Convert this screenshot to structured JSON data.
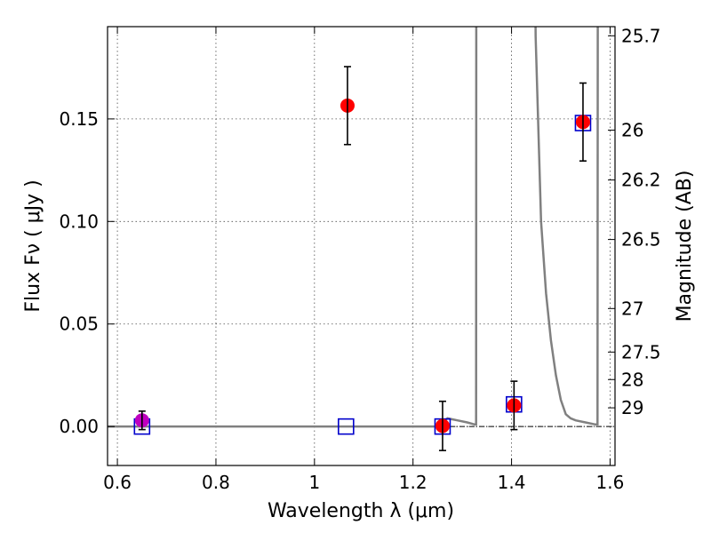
{
  "chart_data": {
    "type": "scatter",
    "title": "",
    "xlabel": "Wavelength  λ (μm)",
    "ylabel": "Flux  Fν  ( μJy )",
    "ylabel_right": "Magnitude (AB)",
    "xlim": [
      0.58,
      1.61
    ],
    "ylim": [
      -0.019,
      0.195
    ],
    "grid": true,
    "x_ticks": [
      {
        "value": 0.6,
        "label": "0.6"
      },
      {
        "value": 0.8,
        "label": "0.8"
      },
      {
        "value": 1.0,
        "label": "1"
      },
      {
        "value": 1.2,
        "label": "1.2"
      },
      {
        "value": 1.4,
        "label": "1.4"
      },
      {
        "value": 1.6,
        "label": "1.6"
      }
    ],
    "y_ticks": [
      {
        "value": 0.0,
        "label": "0.00"
      },
      {
        "value": 0.05,
        "label": "0.05"
      },
      {
        "value": 0.1,
        "label": "0.10"
      },
      {
        "value": 0.15,
        "label": "0.15"
      }
    ],
    "mag_ticks": [
      {
        "mag": 25.7,
        "label": "25.7"
      },
      {
        "mag": 26.0,
        "label": "26"
      },
      {
        "mag": 26.2,
        "label": "26.2"
      },
      {
        "mag": 26.5,
        "label": "26.5"
      },
      {
        "mag": 27.0,
        "label": "27"
      },
      {
        "mag": 27.5,
        "label": "27.5"
      },
      {
        "mag": 28.0,
        "label": "28"
      },
      {
        "mag": 29.0,
        "label": "29"
      }
    ],
    "observed": {
      "color": "#ff0000",
      "points": [
        {
          "x": 1.067,
          "y": 0.1565,
          "err": 0.019
        },
        {
          "x": 1.26,
          "y": 0.0003,
          "err": 0.012
        },
        {
          "x": 1.405,
          "y": 0.0103,
          "err": 0.0118
        },
        {
          "x": 1.545,
          "y": 0.1485,
          "err": 0.019
        }
      ]
    },
    "observed_optical": {
      "color": "#bf00bf",
      "points": [
        {
          "x": 0.65,
          "y": 0.003,
          "err": 0.0045
        }
      ]
    },
    "model": {
      "color": "#0000cc",
      "points": [
        {
          "x": 0.65,
          "y": 0.0
        },
        {
          "x": 1.064,
          "y": 0.0
        },
        {
          "x": 1.26,
          "y": 0.0
        },
        {
          "x": 1.405,
          "y": 0.0108
        },
        {
          "x": 1.545,
          "y": 0.148
        }
      ]
    },
    "spectrum": {
      "color": "#808080",
      "x": [
        0.58,
        1.25,
        1.27,
        1.29,
        1.31,
        1.325,
        1.328,
        1.3285,
        1.4485,
        1.449,
        1.455,
        1.46,
        1.47,
        1.48,
        1.49,
        1.5,
        1.51,
        1.52,
        1.53,
        1.55,
        1.57,
        1.5745,
        1.575
      ],
      "y": [
        0.0,
        0.0,
        0.004,
        0.003,
        0.002,
        0.001,
        0.001,
        0.2,
        0.2,
        0.19,
        0.14,
        0.1,
        0.065,
        0.042,
        0.025,
        0.013,
        0.006,
        0.004,
        0.003,
        0.002,
        0.001,
        0.001,
        0.2
      ]
    },
    "baseline": {
      "y": 0.0,
      "color": "#000000"
    }
  }
}
